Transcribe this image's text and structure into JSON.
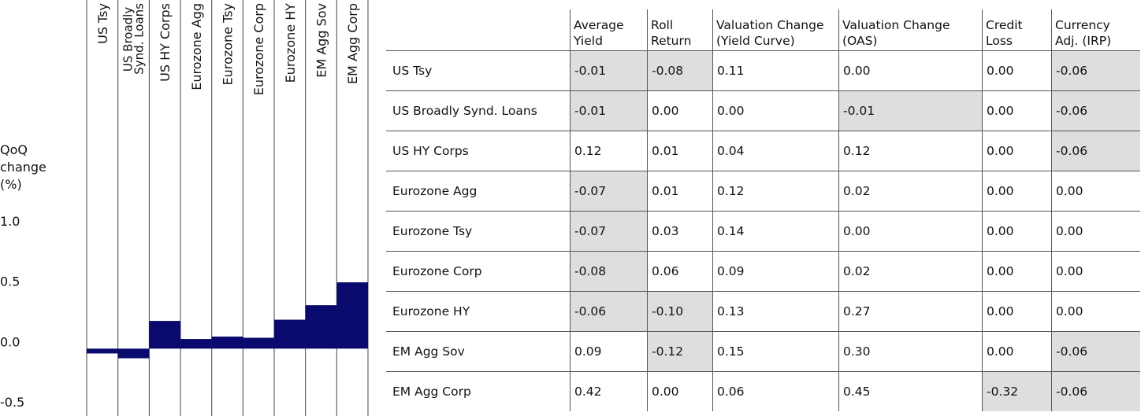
{
  "chart_data": {
    "type": "bar",
    "y_label": "QoQ change (%)",
    "categories": [
      "US Tsy",
      "US Broadly Synd. Loans",
      "US HY Corps",
      "Eurozone Agg",
      "Eurozone Tsy",
      "Eurozone Corp",
      "Eurozone HY",
      "EM Agg Sov",
      "EM Agg Corp"
    ],
    "values": [
      -0.04,
      -0.08,
      0.23,
      0.08,
      0.1,
      0.09,
      0.24,
      0.36,
      0.55
    ],
    "color": "#0a0a6e",
    "ylim": [
      -0.5,
      1.0
    ],
    "yticks": [
      {
        "value": -0.5,
        "label": "-0.5"
      },
      {
        "value": 0,
        "label": "0.0"
      },
      0.5,
      {
        "value": 1,
        "label": "1.0"
      }
    ]
  },
  "table": {
    "header": [
      "",
      "Average Yield",
      "Roll Return",
      "Valuation Change (Yield Curve)",
      "Valuation Change (OAS)",
      "Credit Loss",
      "Currency Adj. (IRP)"
    ],
    "rows": [
      [
        "US Tsy",
        "-0.01",
        "-0.08",
        "0.11",
        "0.00",
        "0.00",
        "-0.06"
      ],
      [
        "US Broadly Synd. Loans",
        "-0.01",
        "0.00",
        "0.00",
        "-0.01",
        "0.00",
        "-0.06"
      ],
      [
        "US HY Corps",
        "0.12",
        "0.01",
        "0.04",
        "0.12",
        "0.00",
        "-0.06"
      ],
      [
        "Eurozone Agg",
        "-0.07",
        "0.01",
        "0.12",
        "0.02",
        "0.00",
        "0.00"
      ],
      [
        "Eurozone Tsy",
        "-0.07",
        "0.03",
        "0.14",
        "0.00",
        "0.00",
        "0.00"
      ],
      [
        "Eurozone Corp",
        "-0.08",
        "0.06",
        "0.09",
        "0.02",
        "0.00",
        "0.00"
      ],
      [
        "Eurozone HY",
        "-0.06",
        "-0.10",
        "0.13",
        "0.27",
        "0.00",
        "0.00"
      ],
      [
        "EM Agg Sov",
        "0.09",
        "-0.12",
        "0.15",
        "0.30",
        "0.00",
        "-0.06"
      ],
      [
        "EM Agg Corp",
        "0.42",
        "0.00",
        "0.06",
        "0.45",
        "-0.32",
        "-0.06"
      ]
    ]
  }
}
